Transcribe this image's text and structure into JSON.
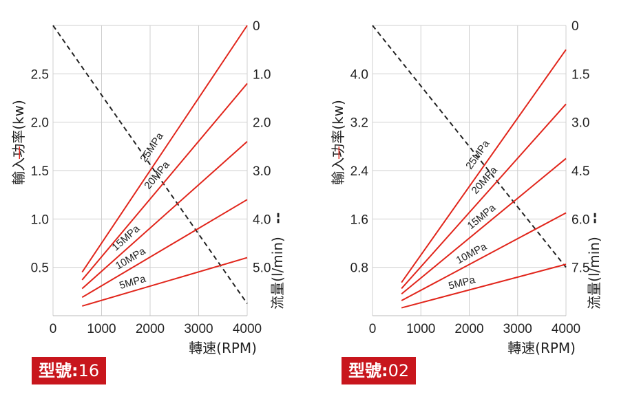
{
  "chart_data": [
    {
      "type": "line",
      "model_badge": {
        "label": "型號",
        "separator": ":",
        "value": "16"
      },
      "xlabel": "轉速(RPM)",
      "ylabel_left": "輸入功率(kw)",
      "ylabel_left_marker": "—",
      "ylabel_right": "流量(l/min)",
      "ylabel_right_marker": "--",
      "x_ticks": [
        "0",
        "1000",
        "2000",
        "3000",
        "4000"
      ],
      "xlim": [
        0,
        4000
      ],
      "y_left_ticks": [
        "0.5",
        "1.0",
        "1.5",
        "2.0",
        "2.5"
      ],
      "y_left_tick_values": [
        0.5,
        1.0,
        1.5,
        2.0,
        2.5
      ],
      "ylim_left": [
        0,
        3.0
      ],
      "y_right_ticks": [
        "0",
        "1.0",
        "2.0",
        "3.0",
        "4.0",
        "5.0"
      ],
      "y_right_tick_values": [
        0,
        1.0,
        2.0,
        3.0,
        4.0,
        5.0
      ],
      "ylim_right_inverted": [
        0,
        6.0
      ],
      "grid": true,
      "power_series": [
        {
          "name": "25MPa",
          "x": [
            600,
            4000
          ],
          "y": [
            0.45,
            3.0
          ]
        },
        {
          "name": "20MPa",
          "x": [
            600,
            4000
          ],
          "y": [
            0.37,
            2.4
          ]
        },
        {
          "name": "15MPa",
          "x": [
            600,
            4000
          ],
          "y": [
            0.28,
            1.8
          ]
        },
        {
          "name": "10MPa",
          "x": [
            600,
            4000
          ],
          "y": [
            0.19,
            1.2
          ]
        },
        {
          "name": "5MPa",
          "x": [
            600,
            4000
          ],
          "y": [
            0.1,
            0.6
          ]
        }
      ],
      "flow_series": {
        "x": [
          0,
          4000
        ],
        "y": [
          0,
          5.75
        ]
      },
      "colors": {
        "power": "#e1251b",
        "flow": "#222222",
        "grid": "#cfcfcf"
      }
    },
    {
      "type": "line",
      "model_badge": {
        "label": "型號",
        "separator": ":",
        "value": "02"
      },
      "xlabel": "轉速(RPM)",
      "ylabel_left": "輸入功率(kw)",
      "ylabel_left_marker": "—",
      "ylabel_right": "流量(l/min)",
      "ylabel_right_marker": "--",
      "x_ticks": [
        "0",
        "1000",
        "2000",
        "3000",
        "4000"
      ],
      "xlim": [
        0,
        4000
      ],
      "y_left_ticks": [
        "0.8",
        "1.6",
        "2.4",
        "3.2",
        "4.0"
      ],
      "y_left_tick_values": [
        0.8,
        1.6,
        2.4,
        3.2,
        4.0
      ],
      "ylim_left": [
        0,
        4.8
      ],
      "y_right_ticks": [
        "0",
        "1.5",
        "3.0",
        "4.5",
        "6.0",
        "7.5"
      ],
      "y_right_tick_values": [
        0,
        1.5,
        3.0,
        4.5,
        6.0,
        7.5
      ],
      "ylim_right_inverted": [
        0,
        9.0
      ],
      "grid": true,
      "power_series": [
        {
          "name": "25MPa",
          "x": [
            600,
            4000
          ],
          "y": [
            0.55,
            4.4
          ]
        },
        {
          "name": "20MPa",
          "x": [
            600,
            4000
          ],
          "y": [
            0.45,
            3.5
          ]
        },
        {
          "name": "15MPa",
          "x": [
            600,
            4000
          ],
          "y": [
            0.36,
            2.6
          ]
        },
        {
          "name": "10MPa",
          "x": [
            600,
            4000
          ],
          "y": [
            0.25,
            1.7
          ]
        },
        {
          "name": "5MPa",
          "x": [
            600,
            4000
          ],
          "y": [
            0.13,
            0.85
          ]
        }
      ],
      "flow_series": {
        "x": [
          0,
          4000
        ],
        "y": [
          0,
          7.5
        ]
      },
      "colors": {
        "power": "#e1251b",
        "flow": "#222222",
        "grid": "#cfcfcf"
      }
    }
  ]
}
